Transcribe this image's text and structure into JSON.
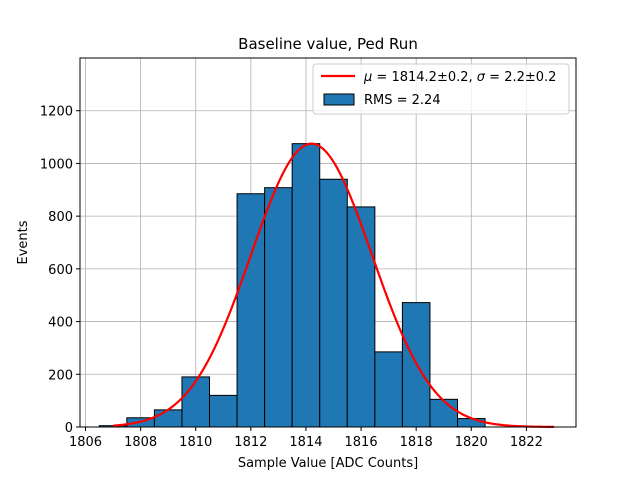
{
  "chart_data": {
    "type": "bar",
    "title": "Baseline value, Ped Run",
    "xlabel": "Sample Value [ADC Counts]",
    "ylabel": "Events",
    "xlim": [
      1805.8,
      1823.8
    ],
    "ylim": [
      0,
      1400
    ],
    "xticks": [
      1806,
      1808,
      1810,
      1812,
      1814,
      1816,
      1818,
      1820,
      1822
    ],
    "yticks": [
      0,
      200,
      400,
      600,
      800,
      1000,
      1200
    ],
    "grid": true,
    "legend_position": "top-right",
    "histogram": {
      "name": "RMS = 2.24",
      "color": "#1f77b4",
      "edge_color": "#000000",
      "bin_width": 1,
      "bin_edges": [
        1806.5,
        1807.5,
        1808.5,
        1809.5,
        1810.5,
        1811.5,
        1812.5,
        1813.5,
        1814.5,
        1815.5,
        1816.5,
        1817.5,
        1818.5,
        1819.5,
        1820.5
      ],
      "counts": [
        5,
        35,
        65,
        190,
        120,
        885,
        908,
        1075,
        940,
        835,
        285,
        472,
        105,
        32
      ]
    },
    "fit": {
      "name_mu": "1814.2±0.2",
      "name_sigma": "2.2±0.2",
      "color": "#ff0000",
      "mu": 1814.2,
      "sigma": 2.2,
      "amplitude": 1075,
      "x_range": [
        1807,
        1823
      ]
    }
  }
}
